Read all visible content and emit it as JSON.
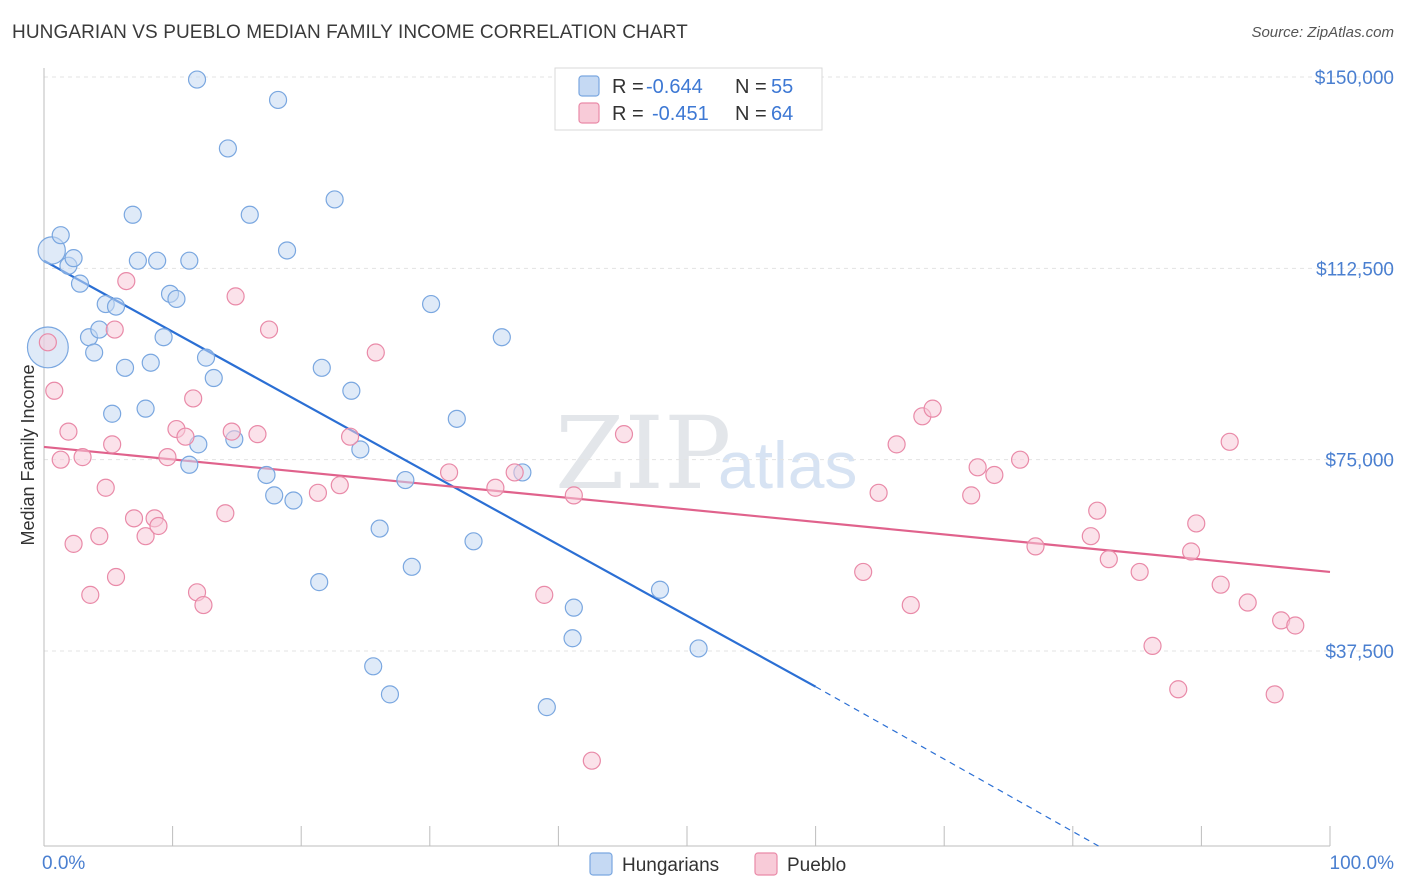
{
  "title": "HUNGARIAN VS PUEBLO MEDIAN FAMILY INCOME CORRELATION CHART",
  "source": "Source: ZipAtlas.com",
  "watermark": {
    "zip": "ZIP",
    "atlas": "atlas"
  },
  "chart_data": {
    "type": "scatter",
    "title": "HUNGARIAN VS PUEBLO MEDIAN FAMILY INCOME CORRELATION CHART",
    "xlabel": "",
    "ylabel": "Median Family Income",
    "xlim": [
      0,
      100
    ],
    "ylim": [
      0,
      155000
    ],
    "x_tick_labels": [
      "0.0%",
      "100.0%"
    ],
    "y_ticks": [
      37500,
      75000,
      112500,
      150000
    ],
    "y_tick_labels": [
      "$37,500",
      "$75,000",
      "$112,500",
      "$150,000"
    ],
    "grid": true,
    "legend": {
      "position": "top-center",
      "entries": [
        {
          "name": "Hungarians",
          "r_label": "R =",
          "r": "-0.644",
          "n_label": "N =",
          "n": "55",
          "color": "#7aa7e0",
          "fill": "#c5d9f3"
        },
        {
          "name": "Pueblo",
          "r_label": "R =",
          "r": "-0.451",
          "n_label": "N =",
          "n": "64",
          "color": "#e98aa8",
          "fill": "#f8cbd8"
        }
      ]
    },
    "series": [
      {
        "name": "Hungarians",
        "color": "#7aa7e0",
        "fill": "#c5d9f3",
        "points": [
          [
            0.6,
            116,
            1.6
          ],
          [
            0.3,
            97,
            2.4
          ],
          [
            1.3,
            119,
            1
          ],
          [
            1.9,
            113,
            1
          ],
          [
            2.3,
            114.5,
            1
          ],
          [
            2.8,
            109.5,
            1
          ],
          [
            3.5,
            99,
            1
          ],
          [
            3.9,
            96,
            1
          ],
          [
            4.3,
            100.5,
            1
          ],
          [
            4.8,
            105.5,
            1
          ],
          [
            5.6,
            105,
            1
          ],
          [
            5.3,
            84,
            1
          ],
          [
            6.3,
            93,
            1
          ],
          [
            6.9,
            123,
            1
          ],
          [
            7.3,
            114,
            1
          ],
          [
            7.9,
            85,
            1
          ],
          [
            8.3,
            94,
            1
          ],
          [
            8.8,
            114,
            1
          ],
          [
            9.3,
            99,
            1
          ],
          [
            9.8,
            107.5,
            1
          ],
          [
            10.3,
            106.5,
            1
          ],
          [
            11.3,
            114,
            1
          ],
          [
            12.0,
            78,
            1
          ],
          [
            11.3,
            74,
            1
          ],
          [
            12.6,
            95,
            1
          ],
          [
            13.2,
            91,
            1
          ],
          [
            14.3,
            136,
            1
          ],
          [
            14.8,
            79,
            1
          ],
          [
            16.0,
            123,
            1
          ],
          [
            17.3,
            72,
            1
          ],
          [
            17.9,
            68,
            1
          ],
          [
            18.2,
            145.5,
            1
          ],
          [
            18.9,
            116,
            1
          ],
          [
            19.4,
            67,
            1
          ],
          [
            21.4,
            51,
            1
          ],
          [
            21.6,
            93,
            1
          ],
          [
            22.6,
            126,
            1
          ],
          [
            23.9,
            88.5,
            1
          ],
          [
            24.6,
            77,
            1
          ],
          [
            25.6,
            34.5,
            1
          ],
          [
            26.1,
            61.5,
            1
          ],
          [
            26.9,
            29,
            1
          ],
          [
            28.1,
            71,
            1
          ],
          [
            28.6,
            54,
            1
          ],
          [
            30.1,
            105.5,
            1
          ],
          [
            32.1,
            83,
            1
          ],
          [
            33.4,
            59,
            1
          ],
          [
            35.6,
            99,
            1
          ],
          [
            37.2,
            72.5,
            1
          ],
          [
            39.1,
            26.5,
            1
          ],
          [
            41.1,
            40,
            1
          ],
          [
            41.2,
            46,
            1
          ],
          [
            47.9,
            49.5,
            1
          ],
          [
            50.9,
            38,
            1
          ],
          [
            11.9,
            149.5,
            1
          ]
        ]
      },
      {
        "name": "Pueblo",
        "color": "#e98aa8",
        "fill": "#f8cbd8",
        "points": [
          [
            0.3,
            98,
            1
          ],
          [
            0.8,
            88.5,
            1
          ],
          [
            1.3,
            75,
            1
          ],
          [
            1.9,
            80.5,
            1
          ],
          [
            2.3,
            58.5,
            1
          ],
          [
            3.0,
            75.5,
            1
          ],
          [
            3.6,
            48.5,
            1
          ],
          [
            4.3,
            60,
            1
          ],
          [
            4.8,
            69.5,
            1
          ],
          [
            5.3,
            78,
            1
          ],
          [
            5.6,
            52,
            1
          ],
          [
            5.5,
            100.5,
            1
          ],
          [
            6.4,
            110,
            1
          ],
          [
            7.0,
            63.5,
            1
          ],
          [
            7.9,
            60,
            1
          ],
          [
            8.6,
            63.5,
            1
          ],
          [
            8.9,
            62,
            1
          ],
          [
            9.6,
            75.5,
            1
          ],
          [
            10.3,
            81,
            1
          ],
          [
            11.0,
            79.5,
            1
          ],
          [
            11.6,
            87,
            1
          ],
          [
            11.9,
            49,
            1
          ],
          [
            12.4,
            46.5,
            1
          ],
          [
            14.1,
            64.5,
            1
          ],
          [
            14.6,
            80.5,
            1
          ],
          [
            14.9,
            107,
            1
          ],
          [
            16.6,
            80,
            1
          ],
          [
            17.5,
            100.5,
            1
          ],
          [
            21.3,
            68.5,
            1
          ],
          [
            23.0,
            70,
            1
          ],
          [
            23.8,
            79.5,
            1
          ],
          [
            25.8,
            96,
            1
          ],
          [
            31.5,
            72.5,
            1
          ],
          [
            35.1,
            69.5,
            1
          ],
          [
            36.6,
            72.5,
            1
          ],
          [
            38.9,
            48.5,
            1
          ],
          [
            41.2,
            68,
            1
          ],
          [
            42.6,
            16,
            1
          ],
          [
            45.1,
            80,
            1
          ],
          [
            63.7,
            53,
            1
          ],
          [
            64.9,
            68.5,
            1
          ],
          [
            66.3,
            78,
            1
          ],
          [
            67.4,
            46.5,
            1
          ],
          [
            68.3,
            83.5,
            1
          ],
          [
            69.1,
            85,
            1
          ],
          [
            72.1,
            68,
            1
          ],
          [
            72.6,
            73.5,
            1
          ],
          [
            73.9,
            72,
            1
          ],
          [
            75.9,
            75,
            1
          ],
          [
            77.1,
            58,
            1
          ],
          [
            81.4,
            60,
            1
          ],
          [
            81.9,
            65,
            1
          ],
          [
            82.8,
            55.5,
            1
          ],
          [
            85.2,
            53,
            1
          ],
          [
            86.2,
            38.5,
            1
          ],
          [
            88.2,
            30,
            1
          ],
          [
            89.2,
            57,
            1
          ],
          [
            89.6,
            62.5,
            1
          ],
          [
            91.5,
            50.5,
            1
          ],
          [
            92.2,
            78.5,
            1
          ],
          [
            93.6,
            47,
            1
          ],
          [
            95.7,
            29,
            1
          ],
          [
            96.2,
            43.5,
            1
          ],
          [
            97.3,
            42.5,
            1
          ]
        ]
      }
    ],
    "trend_lines": [
      {
        "series": "Hungarians",
        "x0": 0,
        "y0": 114,
        "x1": 60,
        "y1": 30.5,
        "dash_to_x": 82,
        "dash_to_y": 0,
        "color": "#2b6fd4"
      },
      {
        "series": "Pueblo",
        "x0": 0,
        "y0": 77.5,
        "x1": 100,
        "y1": 53,
        "color": "#e0628c"
      }
    ]
  }
}
